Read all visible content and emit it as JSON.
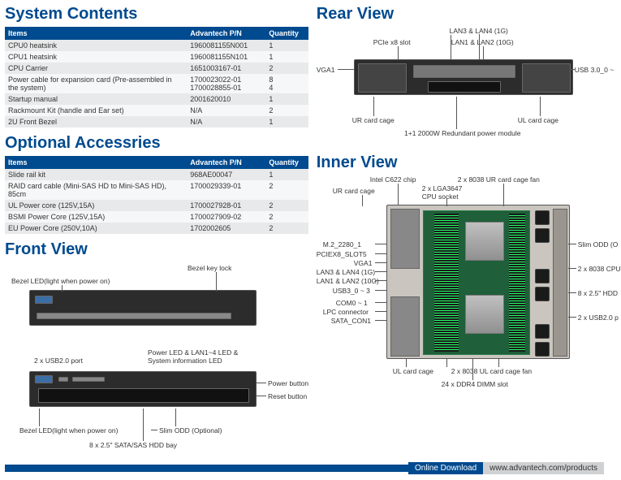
{
  "sections": {
    "systemContents": "System Contents",
    "optionalAccessories": "Optional Accessries",
    "frontView": "Front View",
    "rearView": "Rear View",
    "innerView": "Inner View"
  },
  "headers": {
    "items": "Items",
    "pn": "Advantech P/N",
    "qty": "Quantity"
  },
  "systemContents": [
    {
      "item": "CPU0 heatsink",
      "pn": "1960081155N001",
      "qty": "1"
    },
    {
      "item": "CPU1 heatsink",
      "pn": "1960081155N101",
      "qty": "1"
    },
    {
      "item": "CPU Carrier",
      "pn": "1651003167-01",
      "qty": "2"
    },
    {
      "item": "Power cable for expansion card (Pre-assembled in the system)",
      "pn": "1700023022-01\n1700028855-01",
      "qty": "8\n4"
    },
    {
      "item": "Startup manual",
      "pn": "2001620010",
      "qty": "1"
    },
    {
      "item": "Rackmount Kit (handle and Ear set)",
      "pn": "N/A",
      "qty": "2"
    },
    {
      "item": "2U Front Bezel",
      "pn": "N/A",
      "qty": "1"
    }
  ],
  "optionalAccessories": [
    {
      "item": "Slide rail kit",
      "pn": "968AE00047",
      "qty": "1"
    },
    {
      "item": "RAID card cable (Mini-SAS HD to Mini-SAS HD), 85cm",
      "pn": "1700029339-01",
      "qty": "2"
    },
    {
      "item": "UL Power core  (125V,15A)",
      "pn": "1700027928-01",
      "qty": "2"
    },
    {
      "item": "BSMI Power Core (125V,15A)",
      "pn": "1700027909-02",
      "qty": "2"
    },
    {
      "item": "EU Power Core  (250V,10A)",
      "pn": "1702002605",
      "qty": "2"
    }
  ],
  "frontView": {
    "bezelLed": "Bezel LED(light when power on)",
    "bezelKeyLock": "Bezel key lock",
    "usb": "2 x USB2.0 port",
    "powerLed": "Power LED & LAN1~4 LED &\nSystem information LED",
    "powerBtn": "Power button",
    "resetBtn": "Reset button",
    "bezelLed2": "Bezel LED(light when power on)",
    "slimOdd": "Slim ODD (Optional)",
    "hddBay": "8 x 2.5\" SATA/SAS HDD bay"
  },
  "rearView": {
    "pcie": "PCIe x8 slot",
    "lan34": "LAN3 & LAN4 (1G)",
    "lan12": "LAN1 & LAN2 (10G)",
    "vga": "VGA1",
    "usb3": "USB 3.0_0 ~",
    "urCage": "UR card cage",
    "ulCage": "UL card cage",
    "psu": "1+1 2000W Redundant power module"
  },
  "innerView": {
    "c622": "Intel C622 chip",
    "urFan": "2 x 8038 UR card cage fan",
    "urCage": "UR card cage",
    "cpuSocket": "2 x LGA3647\nCPU socket",
    "m2": "M.2_2280_1",
    "pciex8": "PCIEX8_SLOT5",
    "vga": "VGA1",
    "lan34": "LAN3 & LAN4 (1G)",
    "lan12": "LAN1 & LAN2 (10G)",
    "usb3": "USB3_0 ~ 3",
    "com": "COM0 ~ 1",
    "lpc": "LPC connector",
    "sata": "SATA_CON1",
    "slimOdd": "Slim ODD (O",
    "cpuFan": "2 x 8038 CPU",
    "hdd": "8 x 2.5\" HDD",
    "usb2": "2 x USB2.0 p",
    "ulCage": "UL card cage",
    "ulFan": "2 x 8038 UL card cage fan",
    "dimm": "24 x DDR4 DIMM slot"
  },
  "footer": {
    "download": "Online Download",
    "url": "www.advantech.com/products"
  }
}
